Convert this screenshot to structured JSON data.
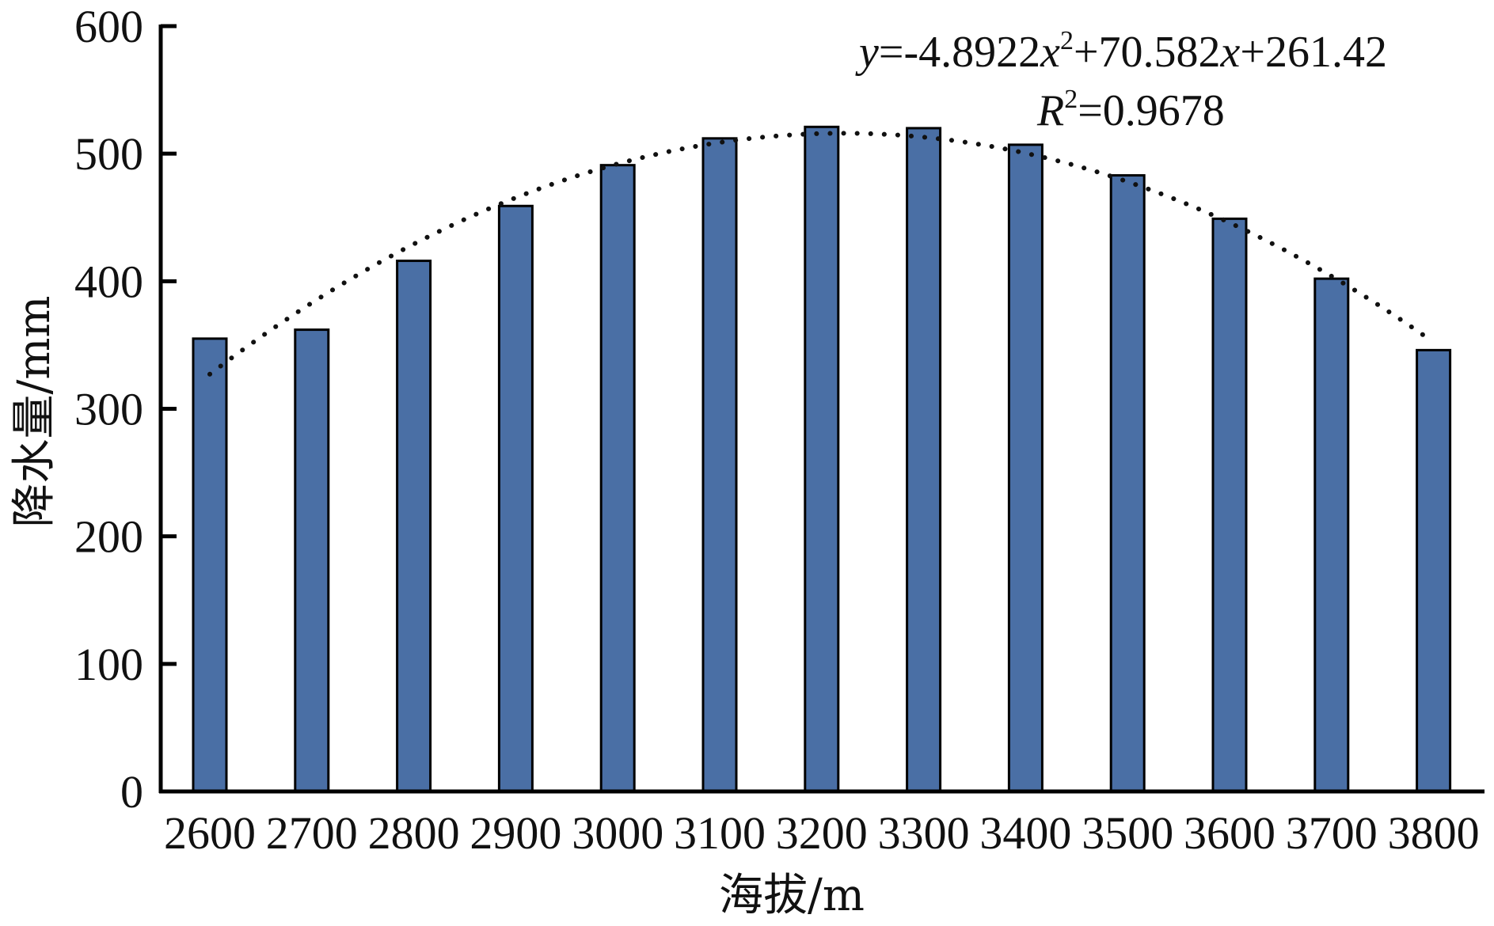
{
  "chart_data": {
    "type": "bar",
    "xlabel": "海拔/m",
    "ylabel": "降水量/mm",
    "categories": [
      "2600",
      "2700",
      "2800",
      "2900",
      "3000",
      "3100",
      "3200",
      "3300",
      "3400",
      "3500",
      "3600",
      "3700",
      "3800"
    ],
    "values": [
      355,
      362,
      416,
      459,
      491,
      512,
      521,
      520,
      507,
      483,
      449,
      402,
      346
    ],
    "ylim": [
      0,
      600
    ],
    "yticks": [
      0,
      100,
      200,
      300,
      400,
      500,
      600
    ],
    "bar_color": "#4a6fa5",
    "bar_edge_color": "#000000",
    "trendline": {
      "type": "polynomial",
      "style": "dotted",
      "coefficients": {
        "a": -4.8922,
        "b": 70.582,
        "c": 261.42
      },
      "equation_y": "y",
      "equation_rest": "=-4.8922",
      "equation_x1": "x",
      "equation_exp1": "2",
      "equation_mid": "+70.582",
      "equation_x2": "x",
      "equation_tail": "+261.42",
      "r2_label": "R",
      "r2_exp": "2",
      "r2_value": "=0.9678"
    },
    "grid": false,
    "legend": "none"
  }
}
